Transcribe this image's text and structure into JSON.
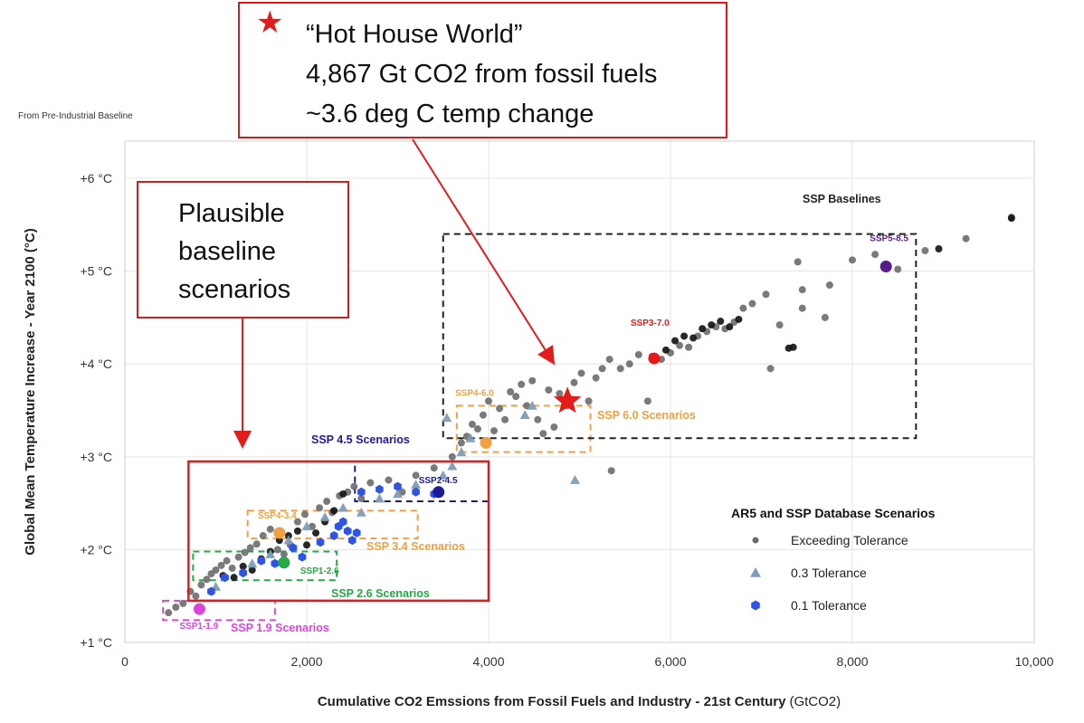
{
  "chart_data": {
    "type": "scatter",
    "title": "",
    "baseline_note": "From Pre-Industrial Baseline",
    "xlabel": "Cumulative CO2 Emssions from Fossil Fuels and Industry - 21st Century",
    "xlabel_unit": "(GtCO2)",
    "ylabel": "Global Mean Temperature Increase - Year 2100 (°C)",
    "xlim": [
      0,
      10000
    ],
    "ylim": [
      1,
      6.4
    ],
    "x_ticks": [
      0,
      2000,
      4000,
      6000,
      8000,
      10000
    ],
    "x_tick_labels": [
      "0",
      "2,000",
      "4,000",
      "6,000",
      "8,000",
      "10,000"
    ],
    "y_ticks": [
      1,
      2,
      3,
      4,
      5,
      6
    ],
    "y_tick_labels": [
      "+1 °C",
      "+2 °C",
      "+3 °C",
      "+4 °C",
      "+5 °C",
      "+6 °C"
    ],
    "grid": true,
    "legend_title": "AR5 and SSP Database Scenarios",
    "legend_position": "bottom-right",
    "legend": [
      {
        "label": "Exceeding Tolerance",
        "marker": "circle",
        "color": "#6b6b6b"
      },
      {
        "label": "0.3 Tolerance",
        "marker": "triangle",
        "color": "#7f9db5"
      },
      {
        "label": "0.1 Tolerance",
        "marker": "hexagon",
        "color": "#2f55e6"
      }
    ],
    "colors": {
      "gray": "#5c5c5c",
      "black": "#111111",
      "blue": "#2f55e6",
      "steel": "#7f9db5",
      "orange": "#f0a040",
      "green": "#22aa44",
      "magenta": "#dd44dd",
      "red": "#e31b1b",
      "purple": "#5a1a8c",
      "navy": "#1c1c9a"
    },
    "series": [
      {
        "name": "Exceeding Tolerance",
        "marker": "circle",
        "color": "#6b6b6b",
        "points": [
          [
            480,
            1.32
          ],
          [
            560,
            1.38
          ],
          [
            640,
            1.42
          ],
          [
            720,
            1.55
          ],
          [
            780,
            1.5
          ],
          [
            840,
            1.62
          ],
          [
            900,
            1.68
          ],
          [
            950,
            1.74
          ],
          [
            1000,
            1.78
          ],
          [
            1060,
            1.83
          ],
          [
            1120,
            1.88
          ],
          [
            1180,
            1.8
          ],
          [
            1250,
            1.92
          ],
          [
            1320,
            1.97
          ],
          [
            1380,
            2.02
          ],
          [
            1450,
            2.06
          ],
          [
            1520,
            2.15
          ],
          [
            1600,
            2.22
          ],
          [
            1680,
            2.0
          ],
          [
            1750,
            1.95
          ],
          [
            1820,
            2.05
          ],
          [
            1900,
            2.3
          ],
          [
            1980,
            2.38
          ],
          [
            2060,
            2.25
          ],
          [
            2140,
            2.45
          ],
          [
            2220,
            2.52
          ],
          [
            2280,
            2.4
          ],
          [
            2360,
            2.58
          ],
          [
            2450,
            2.62
          ],
          [
            2520,
            2.68
          ],
          [
            2600,
            2.55
          ],
          [
            2700,
            2.72
          ],
          [
            2800,
            2.65
          ],
          [
            2900,
            2.75
          ],
          [
            3050,
            2.62
          ],
          [
            3200,
            2.8
          ],
          [
            3400,
            2.88
          ],
          [
            3600,
            3.0
          ],
          [
            3700,
            3.15
          ],
          [
            3760,
            3.22
          ],
          [
            3820,
            3.35
          ],
          [
            3880,
            3.3
          ],
          [
            3940,
            3.45
          ],
          [
            4000,
            3.6
          ],
          [
            4060,
            3.28
          ],
          [
            4120,
            3.52
          ],
          [
            4180,
            3.4
          ],
          [
            4240,
            3.7
          ],
          [
            4300,
            3.65
          ],
          [
            4360,
            3.78
          ],
          [
            4420,
            3.55
          ],
          [
            4480,
            3.82
          ],
          [
            4540,
            3.4
          ],
          [
            4600,
            3.25
          ],
          [
            4660,
            3.72
          ],
          [
            4720,
            3.32
          ],
          [
            4780,
            3.68
          ],
          [
            4860,
            3.55
          ],
          [
            4940,
            3.8
          ],
          [
            5020,
            3.9
          ],
          [
            5100,
            3.6
          ],
          [
            5180,
            3.85
          ],
          [
            5250,
            3.95
          ],
          [
            5330,
            4.05
          ],
          [
            5350,
            2.85
          ],
          [
            5450,
            3.95
          ],
          [
            5550,
            4.0
          ],
          [
            5650,
            4.1
          ],
          [
            5750,
            3.6
          ],
          [
            5900,
            4.05
          ],
          [
            6000,
            4.12
          ],
          [
            6100,
            4.2
          ],
          [
            6200,
            4.18
          ],
          [
            6300,
            4.3
          ],
          [
            6400,
            4.35
          ],
          [
            6500,
            4.4
          ],
          [
            6600,
            4.38
          ],
          [
            6700,
            4.45
          ],
          [
            6800,
            4.6
          ],
          [
            6900,
            4.65
          ],
          [
            7050,
            4.75
          ],
          [
            7100,
            3.95
          ],
          [
            7200,
            4.42
          ],
          [
            7400,
            5.1
          ],
          [
            7450,
            4.6
          ],
          [
            7450,
            4.8
          ],
          [
            7700,
            4.5
          ],
          [
            7750,
            4.85
          ],
          [
            8000,
            5.12
          ],
          [
            8250,
            5.18
          ],
          [
            8500,
            5.02
          ],
          [
            8800,
            5.22
          ],
          [
            9250,
            5.35
          ],
          [
            9750,
            5.58
          ]
        ]
      },
      {
        "name": "black-cluster",
        "marker": "circle",
        "color": "#111111",
        "points": [
          [
            1080,
            1.72
          ],
          [
            1200,
            1.7
          ],
          [
            1300,
            1.82
          ],
          [
            1400,
            1.78
          ],
          [
            1500,
            1.9
          ],
          [
            1600,
            1.98
          ],
          [
            1700,
            2.1
          ],
          [
            1800,
            2.15
          ],
          [
            1900,
            2.2
          ],
          [
            2000,
            2.05
          ],
          [
            2100,
            2.18
          ],
          [
            2200,
            2.3
          ],
          [
            2300,
            2.42
          ],
          [
            2400,
            2.6
          ],
          [
            5800,
            4.08
          ],
          [
            5950,
            4.15
          ],
          [
            6050,
            4.25
          ],
          [
            6150,
            4.3
          ],
          [
            6250,
            4.28
          ],
          [
            6350,
            4.38
          ],
          [
            6450,
            4.42
          ],
          [
            6550,
            4.46
          ],
          [
            6650,
            4.4
          ],
          [
            6750,
            4.48
          ],
          [
            7300,
            4.17
          ],
          [
            7350,
            4.18
          ],
          [
            8950,
            5.24
          ],
          [
            9750,
            5.57
          ]
        ]
      },
      {
        "name": "0.3 Tolerance",
        "marker": "triangle",
        "color": "#7f9db5",
        "points": [
          [
            1000,
            1.6
          ],
          [
            1400,
            1.85
          ],
          [
            1600,
            1.95
          ],
          [
            1800,
            2.1
          ],
          [
            2000,
            2.25
          ],
          [
            2200,
            2.35
          ],
          [
            2400,
            2.45
          ],
          [
            2600,
            2.4
          ],
          [
            2800,
            2.55
          ],
          [
            3000,
            2.6
          ],
          [
            3200,
            2.7
          ],
          [
            3500,
            2.8
          ],
          [
            3600,
            2.9
          ],
          [
            3700,
            3.05
          ],
          [
            3800,
            3.2
          ],
          [
            3540,
            3.42
          ],
          [
            4400,
            3.45
          ],
          [
            4480,
            3.55
          ],
          [
            4950,
            2.75
          ]
        ]
      },
      {
        "name": "0.1 Tolerance",
        "marker": "hexagon",
        "color": "#2f55e6",
        "points": [
          [
            950,
            1.55
          ],
          [
            1100,
            1.7
          ],
          [
            1300,
            1.75
          ],
          [
            1500,
            1.88
          ],
          [
            1650,
            1.85
          ],
          [
            1850,
            2.02
          ],
          [
            1950,
            1.92
          ],
          [
            2150,
            2.08
          ],
          [
            2300,
            2.15
          ],
          [
            2350,
            2.25
          ],
          [
            2400,
            2.3
          ],
          [
            2450,
            2.2
          ],
          [
            2500,
            2.1
          ],
          [
            2550,
            2.18
          ],
          [
            2600,
            2.62
          ],
          [
            2800,
            2.65
          ],
          [
            3000,
            2.68
          ],
          [
            3200,
            2.62
          ],
          [
            3400,
            2.6
          ]
        ]
      }
    ],
    "scenario_markers": [
      {
        "label": "SSP1-1.9",
        "x": 820,
        "y": 1.36,
        "color": "#dd44dd"
      },
      {
        "label": "SSP1-2.6",
        "x": 1750,
        "y": 1.86,
        "color": "#22aa44"
      },
      {
        "label": "SSP4-3.4",
        "x": 1700,
        "y": 2.18,
        "color": "#f0a040"
      },
      {
        "label": "SSP2-4.5",
        "x": 3450,
        "y": 2.62,
        "color": "#1c1c9a"
      },
      {
        "label": "SSP4-6.0",
        "x": 3970,
        "y": 3.15,
        "color": "#f0a040"
      },
      {
        "label": "SSP3-7.0",
        "x": 5820,
        "y": 4.06,
        "color": "#e31b1b"
      },
      {
        "label": "SSP5-8.5",
        "x": 8370,
        "y": 5.05,
        "color": "#5a1a8c"
      }
    ],
    "scenario_regions": [
      {
        "label": "SSP 1.9 Scenarios",
        "x": [
          420,
          1650
        ],
        "y": [
          1.24,
          1.45
        ],
        "color": "#dd44dd"
      },
      {
        "label": "SSP 2.6 Scenarios",
        "x": [
          750,
          2330
        ],
        "y": [
          1.67,
          1.98
        ],
        "color": "#22aa44"
      },
      {
        "label": "SSP 3.4 Scenarios",
        "x": [
          1350,
          3220
        ],
        "y": [
          2.12,
          2.42
        ],
        "color": "#f0a040"
      },
      {
        "label": "SSP 4.5 Scenarios",
        "x": [
          2530,
          4000
        ],
        "y": [
          2.52,
          2.95
        ],
        "color": "#1c1c9a"
      },
      {
        "label": "SSP 6.0 Scenarios",
        "x": [
          3650,
          5120
        ],
        "y": [
          3.05,
          3.55
        ],
        "color": "#f0a040"
      },
      {
        "label": "SSP Baselines",
        "x": [
          3500,
          8700
        ],
        "y": [
          3.2,
          5.4
        ],
        "color": "#222222"
      }
    ],
    "highlight": {
      "x": 4867,
      "y": 3.6,
      "marker": "star",
      "color": "#e31b1b"
    },
    "plausible_region": {
      "x": [
        700,
        4000
      ],
      "y": [
        1.45,
        2.95
      ],
      "color": "#e31b1b"
    }
  },
  "callouts": {
    "hot_house": {
      "title": "“Hot House World”",
      "line2": "4,867 Gt CO2 from fossil fuels",
      "line3": "~3.6 deg C temp change"
    },
    "plausible": {
      "line1": "Plausible",
      "line2": "baseline",
      "line3": "scenarios"
    }
  }
}
